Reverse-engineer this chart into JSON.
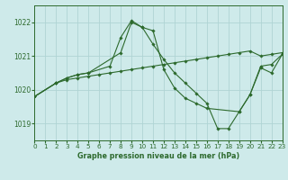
{
  "title": "Graphe pression niveau de la mer (hPa)",
  "background_color": "#ceeaea",
  "line_color": "#2d6a2d",
  "grid_color": "#afd4d4",
  "xlim": [
    0,
    23
  ],
  "ylim": [
    1018.5,
    1022.5
  ],
  "yticks": [
    1019,
    1020,
    1021,
    1022
  ],
  "xticks": [
    0,
    1,
    2,
    3,
    4,
    5,
    6,
    7,
    8,
    9,
    10,
    11,
    12,
    13,
    14,
    15,
    16,
    17,
    18,
    19,
    20,
    21,
    22,
    23
  ],
  "series": [
    {
      "x": [
        0,
        2,
        3,
        4,
        5,
        7,
        8,
        9,
        10,
        11,
        12,
        13,
        14,
        15,
        16,
        19,
        20,
        21,
        22,
        23
      ],
      "y": [
        1019.8,
        1020.2,
        1020.35,
        1020.45,
        1020.5,
        1020.7,
        1021.55,
        1022.05,
        1021.85,
        1021.75,
        1020.6,
        1020.05,
        1019.75,
        1019.6,
        1019.45,
        1019.35,
        1019.85,
        1020.7,
        1020.75,
        1021.05
      ]
    },
    {
      "x": [
        0,
        2,
        3,
        4,
        5,
        6,
        7,
        8,
        9,
        10,
        11,
        12,
        13,
        14,
        15,
        16,
        17,
        18,
        19,
        20,
        21,
        22,
        23
      ],
      "y": [
        1019.8,
        1020.2,
        1020.3,
        1020.35,
        1020.4,
        1020.45,
        1020.5,
        1020.55,
        1020.6,
        1020.65,
        1020.7,
        1020.75,
        1020.8,
        1020.85,
        1020.9,
        1020.95,
        1021.0,
        1021.05,
        1021.1,
        1021.15,
        1021.0,
        1021.05,
        1021.1
      ]
    },
    {
      "x": [
        0,
        2,
        3,
        4,
        5,
        8,
        9,
        10,
        11,
        12,
        13,
        14,
        15,
        16,
        17,
        18,
        19,
        20,
        21,
        22,
        23
      ],
      "y": [
        1019.8,
        1020.2,
        1020.35,
        1020.45,
        1020.5,
        1021.1,
        1022.0,
        1021.85,
        1021.35,
        1020.9,
        1020.5,
        1020.2,
        1019.9,
        1019.6,
        1018.85,
        1018.85,
        1019.35,
        1019.85,
        1020.65,
        1020.5,
        1021.05
      ]
    }
  ]
}
